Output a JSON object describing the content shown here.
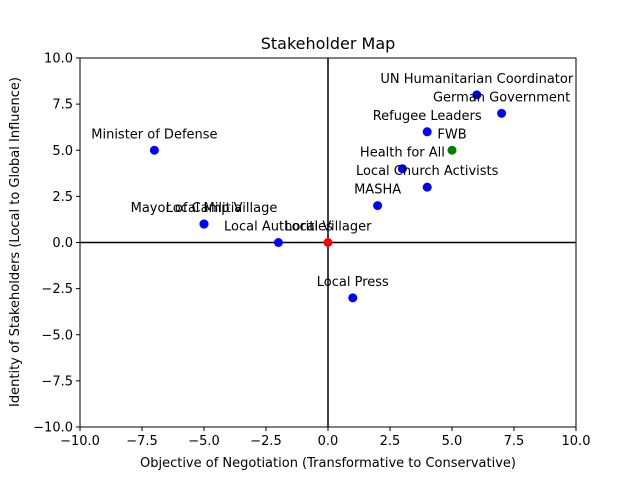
{
  "chart_data": {
    "type": "scatter",
    "title": "Stakeholder Map",
    "xlabel": "Objective of Negotiation (Transformative to Conservative)",
    "ylabel": "Identity of Stakeholders (Local to Global Influence)",
    "xlim": [
      -10.0,
      10.0
    ],
    "ylim": [
      -10.0,
      10.0
    ],
    "xticks": [
      -10.0,
      -7.5,
      -5.0,
      -2.5,
      0.0,
      2.5,
      5.0,
      7.5,
      10.0
    ],
    "yticks": [
      -10.0,
      -7.5,
      -5.0,
      -2.5,
      0.0,
      2.5,
      5.0,
      7.5,
      10.0
    ],
    "tick_labels_x": [
      "−10.0",
      "−7.5",
      "−5.0",
      "−2.5",
      "0.0",
      "2.5",
      "5.0",
      "7.5",
      "10.0"
    ],
    "tick_labels_y": [
      "−10.0",
      "−7.5",
      "−5.0",
      "−2.5",
      "0.0",
      "2.5",
      "5.0",
      "7.5",
      "10.0"
    ],
    "grid": false,
    "reference_lines": {
      "x": 0,
      "y": 0,
      "color": "#000000"
    },
    "points": [
      {
        "label": "UN Humanitarian Coordinator",
        "x": 6,
        "y": 8,
        "color": "#0000ff"
      },
      {
        "label": "German Government",
        "x": 7,
        "y": 7,
        "color": "#0000ff"
      },
      {
        "label": "Refugee Leaders",
        "x": 4,
        "y": 6,
        "color": "#0000ff"
      },
      {
        "label": "FWB",
        "x": 5,
        "y": 5,
        "color": "#008000"
      },
      {
        "label": "Minister of Defense",
        "x": -7,
        "y": 5,
        "color": "#0000ff"
      },
      {
        "label": "Health for All",
        "x": 3,
        "y": 4,
        "color": "#0000ff"
      },
      {
        "label": "Local Church Activists",
        "x": 4,
        "y": 3,
        "color": "#0000ff"
      },
      {
        "label": "MASHA",
        "x": 2,
        "y": 2,
        "color": "#0000ff"
      },
      {
        "label": "Local Militia",
        "x": -5,
        "y": 1,
        "color": "#0000ff"
      },
      {
        "label": "Mayor of Camp Village",
        "x": -5,
        "y": 1,
        "color": "#0000ff"
      },
      {
        "label": "Local Authorities",
        "x": -2,
        "y": 0,
        "color": "#0000ff"
      },
      {
        "label": "Local Villager",
        "x": 0,
        "y": 0,
        "color": "#ff0000"
      },
      {
        "label": "Local Press",
        "x": 1,
        "y": -3,
        "color": "#0000ff"
      }
    ]
  }
}
